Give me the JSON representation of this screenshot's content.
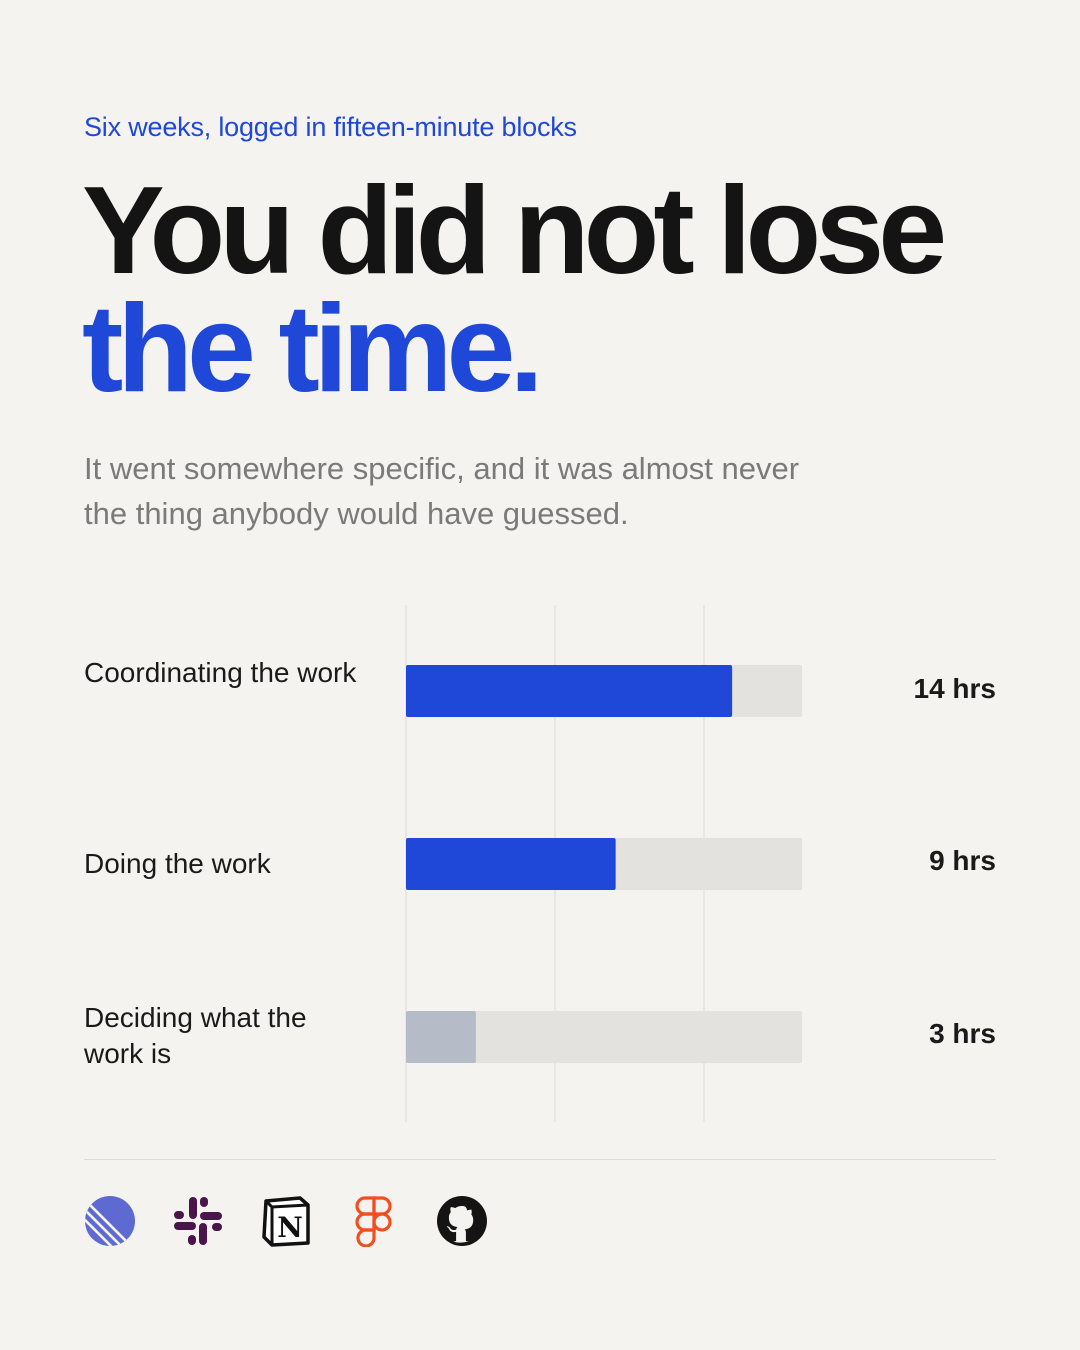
{
  "eyebrow": "Six weeks, logged in fifteen-minute blocks",
  "headline": {
    "line1": "You did not lose",
    "line2": "the time."
  },
  "subhead": "It went somewhere specific, and it was almost never the thing anybody would have guessed.",
  "colors": {
    "accent": "#1f48d8",
    "muted_bar": "#b6bcc7",
    "track": "#e3e2de",
    "gridline": "#dcdbd7"
  },
  "chart_data": {
    "type": "bar",
    "orientation": "horizontal",
    "categories": [
      "Coordinating the work",
      "Doing the work",
      "Deciding what the work is"
    ],
    "values": [
      14,
      9,
      3
    ],
    "value_labels": [
      "14 hrs",
      "9 hrs",
      "3 hrs"
    ],
    "unit": "hrs",
    "xlim": [
      0,
      17
    ],
    "grid": true,
    "legend": "none"
  },
  "tools": [
    {
      "name": "linear-icon"
    },
    {
      "name": "slack-icon"
    },
    {
      "name": "notion-icon"
    },
    {
      "name": "figma-icon"
    },
    {
      "name": "github-icon"
    }
  ]
}
